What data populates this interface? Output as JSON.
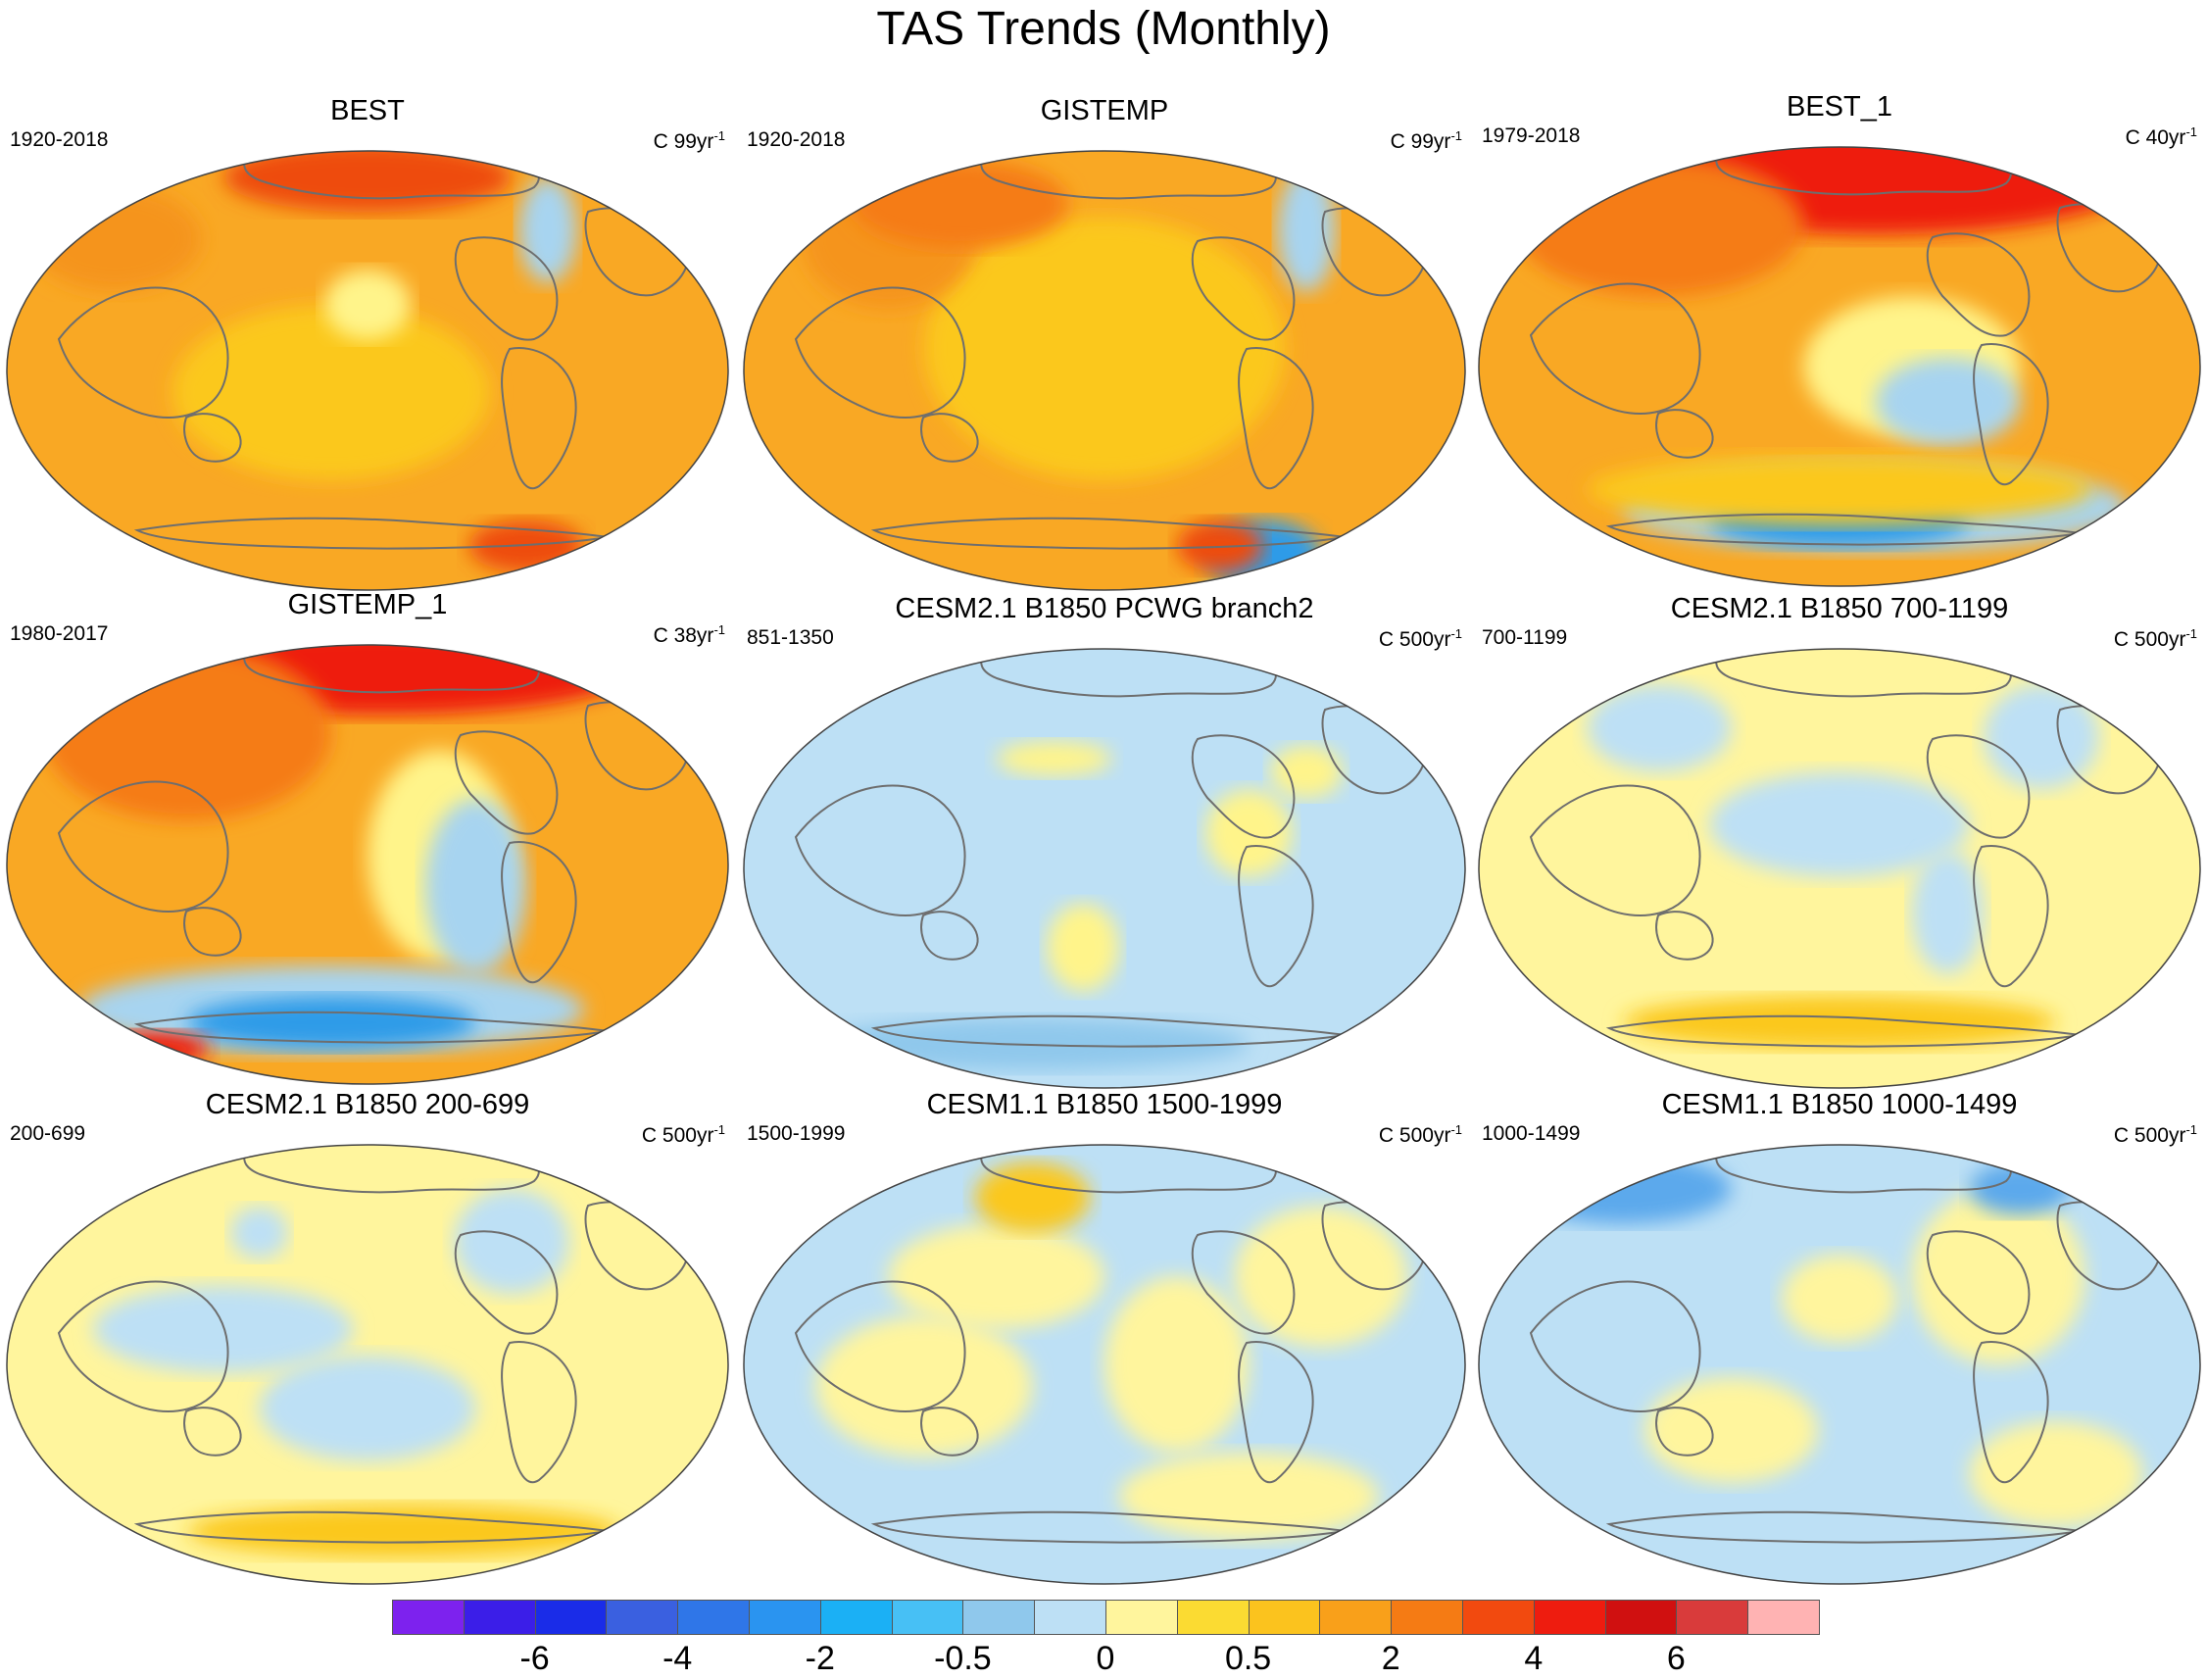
{
  "title": "TAS Trends (Monthly)",
  "palette": {
    "ocean_base": "#ffffff",
    "coast": "#6e6e6e",
    "border": "#555555"
  },
  "panels": [
    {
      "title": "BEST",
      "period": "1920-2018",
      "units": "C",
      "trend": "99yr",
      "exp": "-1",
      "base": "#f9a824",
      "blobs": [
        [
          "#fbc81e",
          0.45,
          0.55,
          0.22,
          0.1
        ],
        [
          "#f5941a",
          0.15,
          0.2,
          0.12,
          0.06
        ],
        [
          "#ee4b10",
          0.5,
          0.06,
          0.2,
          0.04
        ],
        [
          "#a7d4f0",
          0.75,
          0.18,
          0.04,
          0.06
        ],
        [
          "#fff48a",
          0.5,
          0.35,
          0.06,
          0.04
        ],
        [
          "#ee4b10",
          0.72,
          0.9,
          0.08,
          0.03
        ]
      ]
    },
    {
      "title": "GISTEMP",
      "period": "1920-2018",
      "units": "C",
      "trend": "99yr",
      "exp": "-1",
      "base": "#f9a824",
      "blobs": [
        [
          "#fbc81e",
          0.5,
          0.45,
          0.25,
          0.15
        ],
        [
          "#f5941a",
          0.2,
          0.2,
          0.12,
          0.08
        ],
        [
          "#f57b14",
          0.3,
          0.12,
          0.15,
          0.05
        ],
        [
          "#a7d4f0",
          0.78,
          0.18,
          0.04,
          0.07
        ],
        [
          "#2f9be8",
          0.72,
          0.92,
          0.08,
          0.04
        ],
        [
          "#ee4b10",
          0.66,
          0.9,
          0.06,
          0.03
        ]
      ]
    },
    {
      "title": "BEST_1",
      "period": "1979-2018",
      "units": "C",
      "trend": "40yr",
      "exp": "-1",
      "base": "#f9a824",
      "blobs": [
        [
          "#ee1c0f",
          0.55,
          0.06,
          0.38,
          0.07
        ],
        [
          "#f57b14",
          0.25,
          0.18,
          0.2,
          0.08
        ],
        [
          "#fff48a",
          0.6,
          0.5,
          0.15,
          0.08
        ],
        [
          "#a7d4f0",
          0.65,
          0.58,
          0.1,
          0.05
        ],
        [
          "#a7d4f0",
          0.55,
          0.82,
          0.35,
          0.05
        ],
        [
          "#2f9be8",
          0.5,
          0.85,
          0.18,
          0.03
        ],
        [
          "#fbc81e",
          0.5,
          0.78,
          0.35,
          0.04
        ]
      ]
    },
    {
      "title": "GISTEMP_1",
      "period": "1980-2017",
      "units": "C",
      "trend": "38yr",
      "exp": "-1",
      "base": "#f9a824",
      "blobs": [
        [
          "#ee1c0f",
          0.52,
          0.06,
          0.35,
          0.05
        ],
        [
          "#f57b14",
          0.25,
          0.2,
          0.2,
          0.1
        ],
        [
          "#fff48a",
          0.6,
          0.48,
          0.1,
          0.12
        ],
        [
          "#a7d4f0",
          0.65,
          0.55,
          0.07,
          0.1
        ],
        [
          "#a7d4f0",
          0.45,
          0.83,
          0.35,
          0.05
        ],
        [
          "#2f9be8",
          0.45,
          0.86,
          0.2,
          0.03
        ],
        [
          "#ee1c0f",
          0.2,
          0.92,
          0.08,
          0.02
        ]
      ]
    },
    {
      "title": "CESM2.1 B1850 PCWG branch2",
      "period": "851-1350",
      "units": "C",
      "trend": "500yr",
      "exp": "-1",
      "base": "#bde0f5",
      "blobs": [
        [
          "#fff48a",
          0.43,
          0.25,
          0.08,
          0.02
        ],
        [
          "#fff48a",
          0.47,
          0.68,
          0.05,
          0.05
        ],
        [
          "#fff48a",
          0.7,
          0.42,
          0.06,
          0.05
        ],
        [
          "#fff48a",
          0.78,
          0.28,
          0.05,
          0.03
        ],
        [
          "#8fc8ec",
          0.4,
          0.9,
          0.3,
          0.03
        ]
      ]
    },
    {
      "title": "CESM2.1 B1850 700-1199",
      "period": "700-1199",
      "units": "C",
      "trend": "500yr",
      "exp": "-1",
      "base": "#fff59d",
      "blobs": [
        [
          "#bde0f5",
          0.5,
          0.4,
          0.18,
          0.06
        ],
        [
          "#bde0f5",
          0.25,
          0.18,
          0.1,
          0.05
        ],
        [
          "#bde0f5",
          0.78,
          0.2,
          0.08,
          0.06
        ],
        [
          "#bde0f5",
          0.65,
          0.6,
          0.05,
          0.07
        ],
        [
          "#fbc81e",
          0.5,
          0.85,
          0.3,
          0.03
        ]
      ]
    },
    {
      "title": "CESM2.1 B1850 200-699",
      "period": "200-699",
      "units": "C",
      "trend": "500yr",
      "exp": "-1",
      "base": "#fff59d",
      "blobs": [
        [
          "#bde0f5",
          0.3,
          0.42,
          0.18,
          0.05
        ],
        [
          "#bde0f5",
          0.5,
          0.6,
          0.15,
          0.06
        ],
        [
          "#bde0f5",
          0.7,
          0.22,
          0.08,
          0.06
        ],
        [
          "#bde0f5",
          0.35,
          0.2,
          0.04,
          0.03
        ],
        [
          "#fbc81e",
          0.55,
          0.88,
          0.3,
          0.03
        ]
      ]
    },
    {
      "title": "CESM1.1 B1850 1500-1999",
      "period": "1500-1999",
      "units": "C",
      "trend": "500yr",
      "exp": "-1",
      "base": "#bde0f5",
      "blobs": [
        [
          "#fff59d",
          0.35,
          0.3,
          0.15,
          0.06
        ],
        [
          "#fff59d",
          0.6,
          0.5,
          0.1,
          0.1
        ],
        [
          "#fff59d",
          0.25,
          0.55,
          0.15,
          0.08
        ],
        [
          "#fff59d",
          0.7,
          0.8,
          0.18,
          0.05
        ],
        [
          "#fbc81e",
          0.4,
          0.12,
          0.08,
          0.04
        ],
        [
          "#fff59d",
          0.8,
          0.3,
          0.12,
          0.08
        ]
      ]
    },
    {
      "title": "CESM1.1 B1850 1000-1499",
      "period": "1000-1499",
      "units": "C",
      "trend": "500yr",
      "exp": "-1",
      "base": "#bde0f5",
      "blobs": [
        [
          "#fff59d",
          0.72,
          0.3,
          0.12,
          0.1
        ],
        [
          "#fff59d",
          0.35,
          0.65,
          0.12,
          0.06
        ],
        [
          "#fff59d",
          0.8,
          0.75,
          0.12,
          0.06
        ],
        [
          "#fff59d",
          0.5,
          0.35,
          0.08,
          0.05
        ],
        [
          "#5ba9ec",
          0.2,
          0.1,
          0.15,
          0.04
        ],
        [
          "#5ba9ec",
          0.75,
          0.1,
          0.07,
          0.03
        ]
      ]
    }
  ],
  "colorbar": {
    "colors": [
      "#7d22ee",
      "#3b1ee8",
      "#1a2ce8",
      "#3a60e0",
      "#2f76e8",
      "#2a94f0",
      "#1bb0f5",
      "#47c0f5",
      "#8fc8ec",
      "#bde0f5",
      "#fff59d",
      "#fbdb32",
      "#fbc31e",
      "#f9a01a",
      "#f57b14",
      "#f24a0f",
      "#ee1c0f",
      "#d01010",
      "#d93b3b",
      "#ffb3b3"
    ],
    "labels": [
      {
        "text": "-6",
        "edge": 2
      },
      {
        "text": "-4",
        "edge": 4
      },
      {
        "text": "-2",
        "edge": 6
      },
      {
        "text": "-0.5",
        "edge": 8
      },
      {
        "text": "0",
        "edge": 10
      },
      {
        "text": "0.5",
        "edge": 12
      },
      {
        "text": "2",
        "edge": 14
      },
      {
        "text": "4",
        "edge": 16
      },
      {
        "text": "6",
        "edge": 18
      }
    ]
  }
}
